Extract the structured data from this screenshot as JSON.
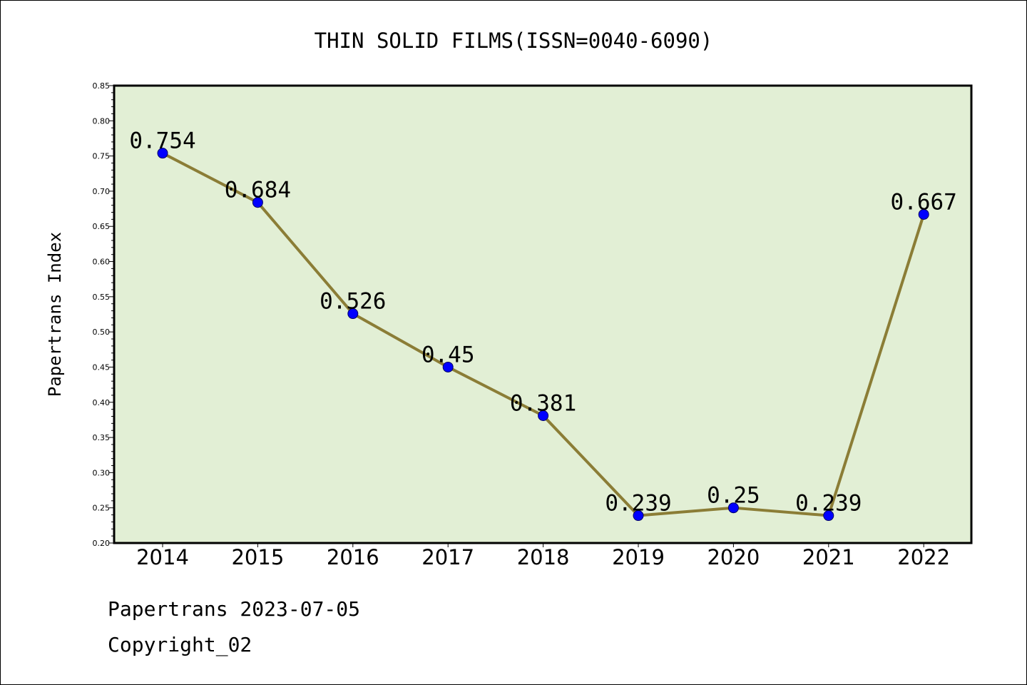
{
  "chart_data": {
    "type": "line",
    "title": "THIN SOLID FILMS(ISSN=0040-6090)",
    "xlabel": "",
    "ylabel": "Papertrans Index",
    "categories": [
      "2014",
      "2015",
      "2016",
      "2017",
      "2018",
      "2019",
      "2020",
      "2021",
      "2022"
    ],
    "series": [
      {
        "values": [
          0.754,
          0.684,
          0.526,
          0.45,
          0.381,
          0.239,
          0.25,
          0.239,
          0.667
        ],
        "labels": [
          "0.754",
          "0.684",
          "0.526",
          "0.45",
          "0.381",
          "0.239",
          "0.25",
          "0.239",
          "0.667"
        ]
      }
    ],
    "ylim": [
      0.2,
      0.85
    ],
    "yticks": [
      "0.20",
      "0.25",
      "0.30",
      "0.35",
      "0.40",
      "0.45",
      "0.50",
      "0.55",
      "0.60",
      "0.65",
      "0.70",
      "0.75",
      "0.80",
      "0.85"
    ],
    "grid": false,
    "legend": "none",
    "colors": {
      "plot_background": "#e2efd5",
      "line": "#8b7d36",
      "marker": "#0000ff",
      "marker_edge": "#000066",
      "axes": "#000000"
    }
  },
  "footer": {
    "line1": "Papertrans 2023-07-05",
    "line2": "Copyright_02"
  }
}
